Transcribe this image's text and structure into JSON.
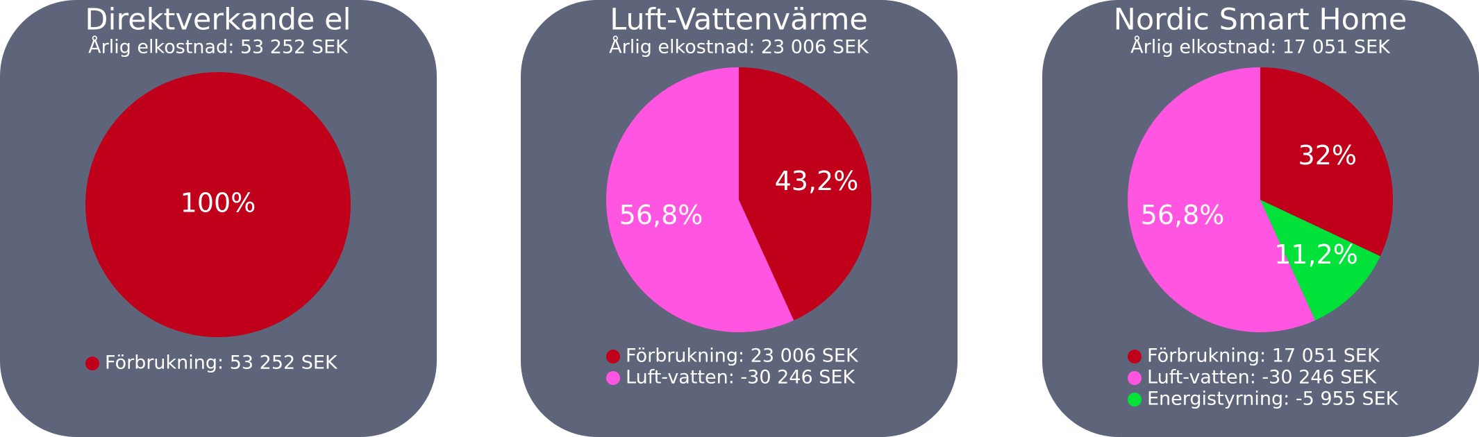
{
  "chart_data": [
    {
      "type": "pie",
      "title": "Direktverkande el",
      "subtitle": "Årlig elkostnad: 53 252 SEK",
      "categories": [
        "Förbrukning: 53 252 SEK"
      ],
      "values": [
        100
      ],
      "value_labels": [
        "100%"
      ],
      "colors": [
        "#c0001a"
      ]
    },
    {
      "type": "pie",
      "title": "Luft-Vattenvärme",
      "subtitle": "Årlig elkostnad: 23 006 SEK",
      "categories": [
        "Förbrukning: 23 006 SEK",
        "Luft-vatten: -30 246 SEK"
      ],
      "values": [
        43.2,
        56.8
      ],
      "value_labels": [
        "43,2%",
        "56,8%"
      ],
      "colors": [
        "#c0001a",
        "#ff55e0"
      ]
    },
    {
      "type": "pie",
      "title": "Nordic Smart Home",
      "subtitle": "Årlig elkostnad: 17 051 SEK",
      "categories": [
        "Förbrukning: 17 051 SEK",
        "Luft-vatten: -30 246 SEK",
        "Energistyrning: -5 955 SEK"
      ],
      "values": [
        32,
        56.8,
        11.2
      ],
      "value_labels": [
        "32%",
        "56,8%",
        "11,2%"
      ],
      "colors": [
        "#c0001a",
        "#ff55e0",
        "#00e13a"
      ]
    }
  ]
}
